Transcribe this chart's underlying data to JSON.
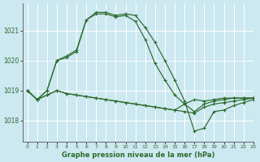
{
  "background_color": "#cce8f0",
  "grid_color": "#ffffff",
  "line_color": "#2d6a2d",
  "xlabel": "Graphe pression niveau de la mer (hPa)",
  "xlim": [
    -0.5,
    23
  ],
  "ylim": [
    1017.3,
    1021.9
  ],
  "yticks": [
    1018,
    1019,
    1020,
    1021
  ],
  "xticks": [
    0,
    1,
    2,
    3,
    4,
    5,
    6,
    7,
    8,
    9,
    10,
    11,
    12,
    13,
    14,
    15,
    16,
    17,
    18,
    19,
    20,
    21,
    22,
    23
  ],
  "lines": [
    [
      1019.0,
      1018.7,
      1018.85,
      1019.0,
      1018.9,
      1018.85,
      1018.8,
      1018.75,
      1018.7,
      1018.65,
      1018.6,
      1018.55,
      1018.5,
      1018.45,
      1018.4,
      1018.35,
      1018.3,
      1018.25,
      1018.45,
      1018.55,
      1018.6,
      1018.65,
      1018.7,
      1018.75
    ],
    [
      1019.0,
      1018.7,
      1018.85,
      1019.0,
      1018.9,
      1018.85,
      1018.8,
      1018.75,
      1018.7,
      1018.65,
      1018.6,
      1018.55,
      1018.5,
      1018.45,
      1018.4,
      1018.35,
      1018.55,
      1018.7,
      1018.65,
      1018.7,
      1018.75,
      1018.75,
      1018.75,
      1018.75
    ],
    [
      1019.0,
      1018.7,
      1019.0,
      1020.0,
      1020.1,
      1020.3,
      1021.35,
      1021.55,
      1021.55,
      1021.45,
      1021.5,
      1021.3,
      1020.7,
      1019.9,
      1019.35,
      1018.85,
      1018.55,
      1018.3,
      1018.55,
      1018.65,
      1018.7,
      1018.75,
      1018.75,
      1018.75
    ],
    [
      1019.0,
      1018.7,
      1019.0,
      1020.0,
      1020.15,
      1020.35,
      1021.35,
      1021.6,
      1021.6,
      1021.5,
      1021.55,
      1021.5,
      1021.1,
      1020.6,
      1020.0,
      1019.35,
      1018.65,
      1017.65,
      1017.75,
      1018.3,
      1018.35,
      1018.5,
      1018.6,
      1018.7
    ]
  ]
}
